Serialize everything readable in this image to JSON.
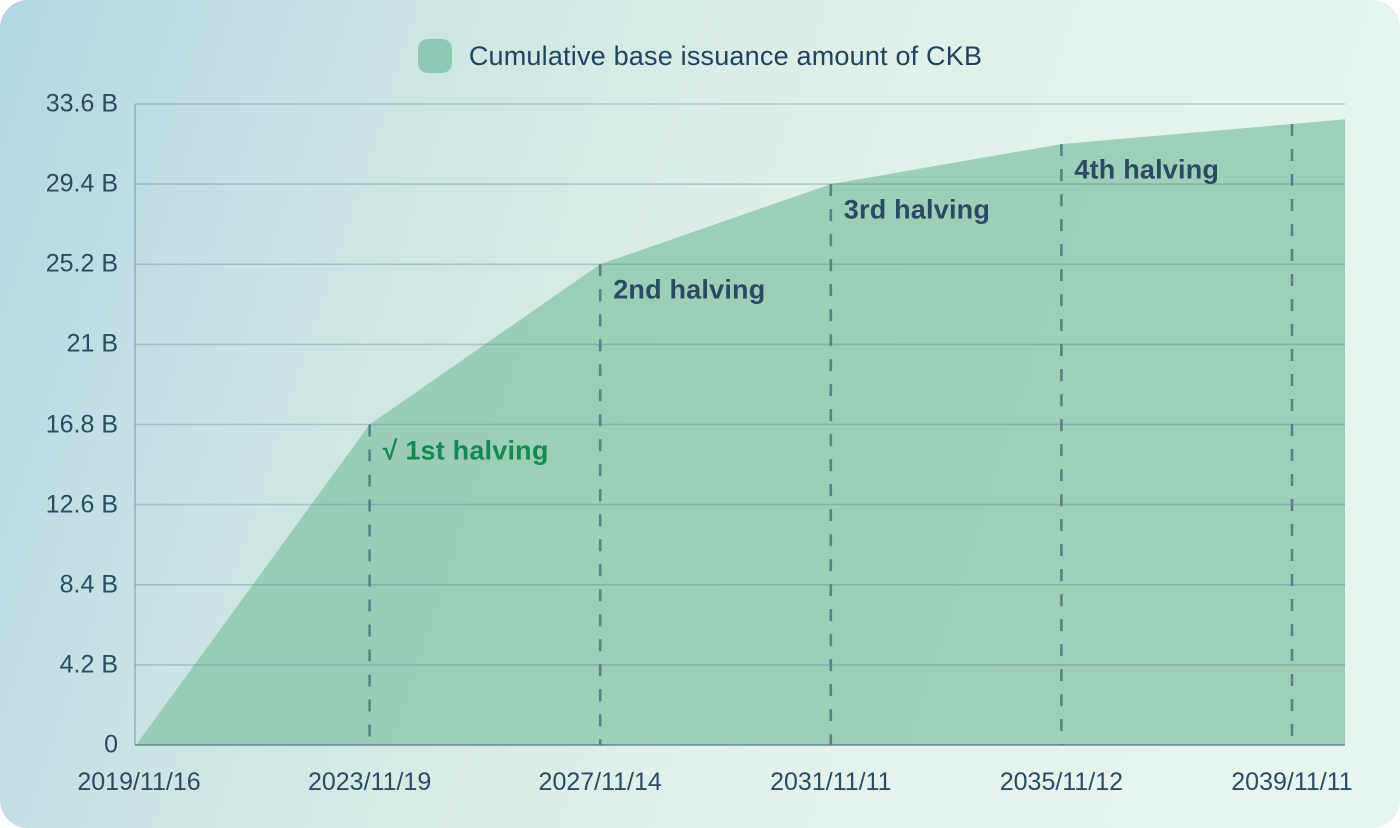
{
  "legend": {
    "label": "Cumulative base issuance amount of CKB"
  },
  "chart_data": {
    "type": "area",
    "title": "Cumulative base issuance amount of CKB",
    "legend_position": "top-center",
    "grid": true,
    "ylim": [
      0,
      33.6
    ],
    "y_tick_values": [
      0,
      4.2,
      8.4,
      12.6,
      16.8,
      21.0,
      25.2,
      29.4,
      33.6
    ],
    "y_tick_labels": [
      "0",
      "4.2 B",
      "8.4 B",
      "12.6 B",
      "16.8 B",
      "21 B",
      "25.2 B",
      "29.4 B",
      "33.6 B"
    ],
    "x_tick_labels": [
      "2019/11/16",
      "2023/11/19",
      "2027/11/14",
      "2031/11/11",
      "2035/11/12",
      "2039/11/11"
    ],
    "series": [
      {
        "name": "Cumulative base issuance amount of CKB",
        "points_billion": [
          {
            "date": "2019/11/16",
            "t": 0.0,
            "value": 0.0
          },
          {
            "date": "2023/11/19",
            "t": 1.0,
            "value": 16.8
          },
          {
            "date": "2027/11/14",
            "t": 2.0,
            "value": 25.2
          },
          {
            "date": "2031/11/11",
            "t": 3.0,
            "value": 29.4
          },
          {
            "date": "2035/11/12",
            "t": 4.0,
            "value": 31.5
          },
          {
            "date": "2039/11/11",
            "t": 5.0,
            "value": 32.55
          },
          {
            "date": "",
            "t": 5.23,
            "value": 32.8
          }
        ]
      }
    ],
    "halving_lines": [
      {
        "at_tick": 1,
        "value": 16.8
      },
      {
        "at_tick": 2,
        "value": 25.2
      },
      {
        "at_tick": 3,
        "value": 29.4
      },
      {
        "at_tick": 4,
        "value": 31.5
      },
      {
        "at_tick": 5,
        "value": 32.55
      }
    ],
    "annotations": [
      {
        "label": "√ 1st halving",
        "at_tick": 1,
        "color": "#128a52"
      },
      {
        "label": "2nd halving",
        "at_tick": 2,
        "color": "#2b4a60"
      },
      {
        "label": "3rd halving",
        "at_tick": 3,
        "color": "#2b4a60"
      },
      {
        "label": "4th halving",
        "at_tick": 4,
        "color": "#2b4a60"
      }
    ],
    "colors": {
      "area_fill": "#8cc6ab",
      "legend_swatch": "#8cc7b2",
      "grid_line": "#55738a",
      "dashed_line": "#4c747c",
      "axis_text": "#2b4c60",
      "annotation_default": "#2b4a60",
      "annotation_done": "#128a52"
    }
  }
}
